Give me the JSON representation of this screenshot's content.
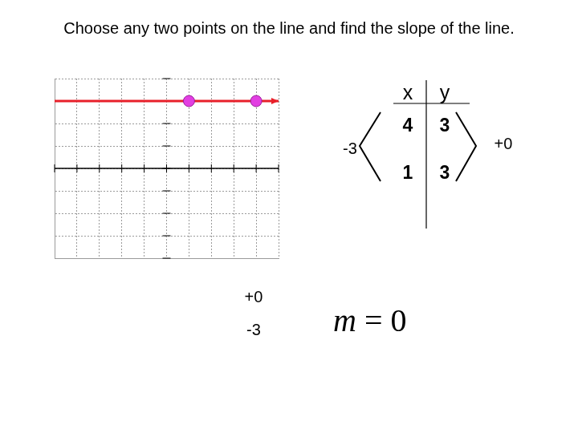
{
  "title": "Choose any two points on the line and find the slope of the line.",
  "chart_data": {
    "type": "line",
    "xlim": [
      -5,
      5
    ],
    "ylim": [
      -4,
      4
    ],
    "xticks": [
      -5,
      -4,
      -3,
      -2,
      -1,
      0,
      1,
      2,
      3,
      4,
      5
    ],
    "yticks": [
      -4,
      -3,
      -2,
      -1,
      0,
      1,
      2,
      3,
      4
    ],
    "grid": true,
    "tick_labels": false,
    "series": [
      {
        "type": "line",
        "color": "#e8202a",
        "x": [
          -5,
          5
        ],
        "values": [
          3,
          3
        ]
      },
      {
        "type": "scatter",
        "color": "#e23fe2",
        "marker": "circle",
        "x": [
          1,
          4
        ],
        "values": [
          3,
          3
        ]
      }
    ]
  },
  "table": {
    "header": [
      "x",
      "y"
    ],
    "rows": [
      [
        4,
        3
      ],
      [
        1,
        3
      ]
    ]
  },
  "table_annotations": {
    "left": "-3",
    "right": "+0"
  },
  "graph_annotations": [
    "+0",
    "-3"
  ],
  "equation": "m = 0"
}
